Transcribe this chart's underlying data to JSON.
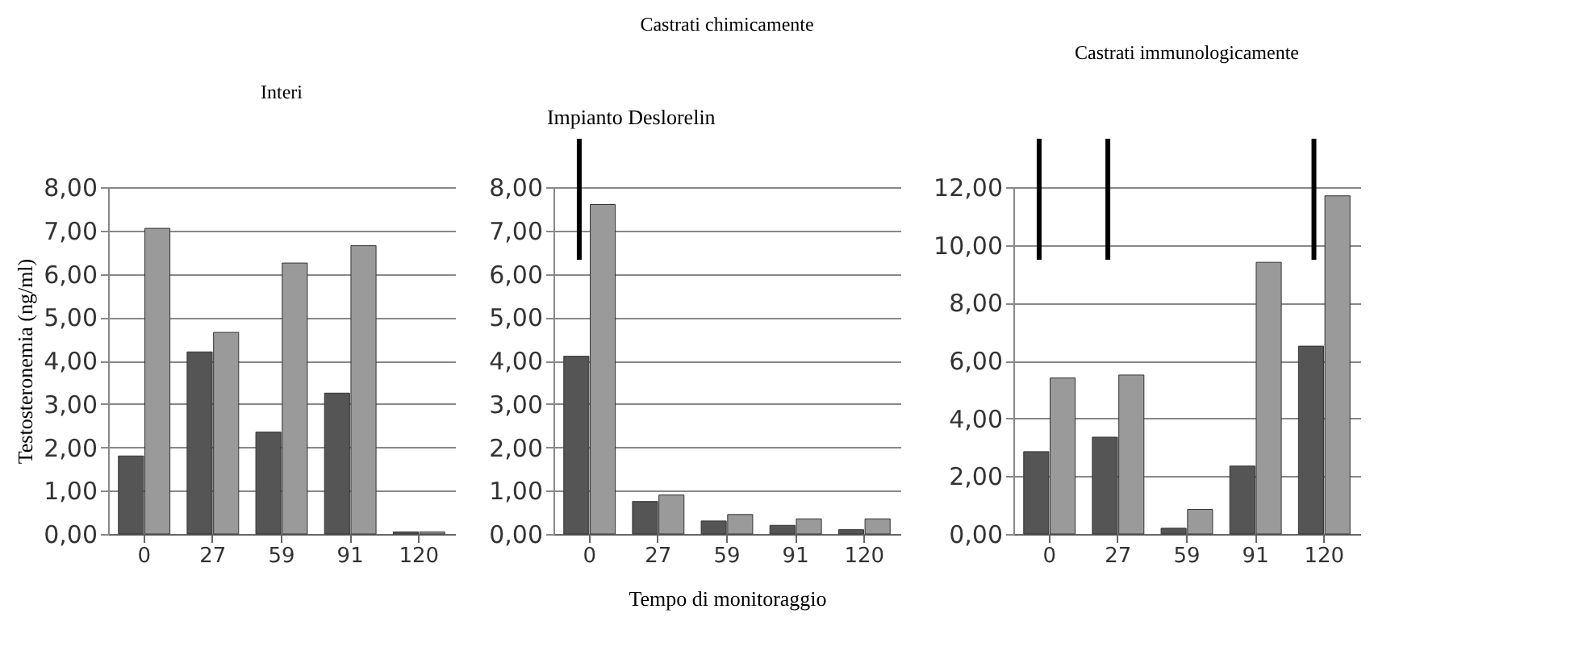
{
  "chart_data": [
    {
      "type": "bar",
      "title": "Interi",
      "ylabel": "Testosteronemia (ng/ml)",
      "categories": [
        "0",
        "27",
        "59",
        "91",
        "120"
      ],
      "ylim": [
        0,
        8
      ],
      "yticks": [
        {
          "value": 0,
          "label": "0,00"
        },
        {
          "value": 1,
          "label": "1,00"
        },
        {
          "value": 2,
          "label": "2,00"
        },
        {
          "value": 3,
          "label": "3,00"
        },
        {
          "value": 4,
          "label": "4,00"
        },
        {
          "value": 5,
          "label": "5,00"
        },
        {
          "value": 6,
          "label": "6,00"
        },
        {
          "value": 7,
          "label": "7,00"
        },
        {
          "value": 8,
          "label": "8,00"
        }
      ],
      "grid": "y",
      "series": [
        {
          "color": "#555555",
          "values": [
            1.8,
            4.2,
            2.35,
            3.25,
            0.05
          ]
        },
        {
          "color": "#9a9a9a",
          "values": [
            7.05,
            4.65,
            6.25,
            6.65,
            0.05
          ]
        }
      ]
    },
    {
      "type": "bar",
      "title": "Castrati chimicamente",
      "xlabel": "Tempo di monitoraggio",
      "categories": [
        "0",
        "27",
        "59",
        "91",
        "120"
      ],
      "ylim": [
        0,
        8
      ],
      "yticks": [
        {
          "value": 0,
          "label": "0,00"
        },
        {
          "value": 1,
          "label": "1,00"
        },
        {
          "value": 2,
          "label": "2,00"
        },
        {
          "value": 3,
          "label": "3,00"
        },
        {
          "value": 4,
          "label": "4,00"
        },
        {
          "value": 5,
          "label": "5,00"
        },
        {
          "value": 6,
          "label": "6,00"
        },
        {
          "value": 7,
          "label": "7,00"
        },
        {
          "value": 8,
          "label": "8,00"
        }
      ],
      "grid": "y",
      "ref_lines": [
        {
          "axis": "x",
          "value": "0",
          "label": "Impianto Deslorelin"
        }
      ],
      "series": [
        {
          "color": "#555555",
          "values": [
            4.1,
            0.75,
            0.3,
            0.2,
            0.1
          ]
        },
        {
          "color": "#9a9a9a",
          "values": [
            7.6,
            0.9,
            0.45,
            0.35,
            0.35
          ]
        }
      ]
    },
    {
      "type": "bar",
      "title": "Castrati immunologicamente",
      "categories": [
        "0",
        "27",
        "59",
        "91",
        "120"
      ],
      "ylim": [
        0,
        12
      ],
      "yticks": [
        {
          "value": 0,
          "label": "0,00"
        },
        {
          "value": 2,
          "label": "2,00"
        },
        {
          "value": 4,
          "label": "4,00"
        },
        {
          "value": 6,
          "label": "6,00"
        },
        {
          "value": 8,
          "label": "8,00"
        },
        {
          "value": 10,
          "label": "10,00"
        },
        {
          "value": 12,
          "label": "12,00"
        }
      ],
      "grid": "y",
      "ref_lines": [
        {
          "axis": "x",
          "value": "0"
        },
        {
          "axis": "x",
          "value": "27"
        },
        {
          "axis": "x",
          "value": "120"
        }
      ],
      "series": [
        {
          "color": "#555555",
          "values": [
            2.85,
            3.35,
            0.2,
            2.35,
            6.5
          ]
        },
        {
          "color": "#9a9a9a",
          "values": [
            5.4,
            5.5,
            0.85,
            9.4,
            11.7
          ]
        }
      ]
    }
  ]
}
